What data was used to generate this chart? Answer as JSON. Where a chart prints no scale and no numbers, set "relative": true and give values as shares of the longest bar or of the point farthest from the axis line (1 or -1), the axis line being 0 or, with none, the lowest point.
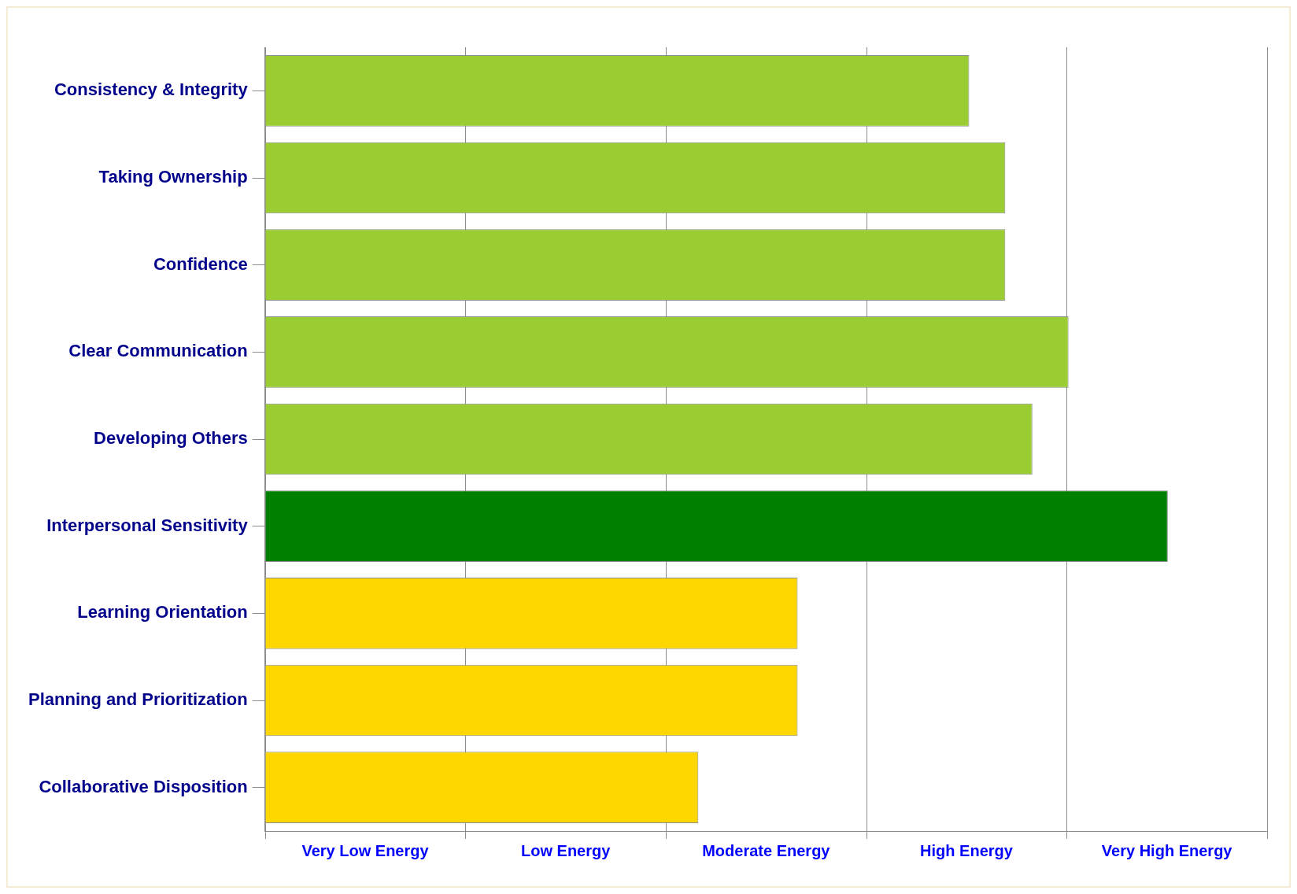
{
  "chart_data": {
    "type": "bar",
    "orientation": "horizontal",
    "relative": true,
    "categories": [
      "Consistency & Integrity",
      "Taking Ownership",
      "Confidence",
      "Clear Communication",
      "Developing Others",
      "Interpersonal Sensitivity",
      "Learning Orientation",
      "Planning and Prioritization",
      "Collaborative Disposition"
    ],
    "values": [
      0.78,
      0.82,
      0.82,
      0.89,
      0.85,
      1,
      0.59,
      0.59,
      0.48
    ],
    "colors": [
      "#9acd32",
      "#9acd32",
      "#9acd32",
      "#9acd32",
      "#9acd32",
      "#008000",
      "#ffd700",
      "#ffd700",
      "#ffd700"
    ],
    "annotations": [
      "Very Low Energy",
      "Low Energy",
      "Moderate Energy",
      "High Energy",
      "Very High Energy"
    ],
    "grid": "x",
    "legend": false
  }
}
